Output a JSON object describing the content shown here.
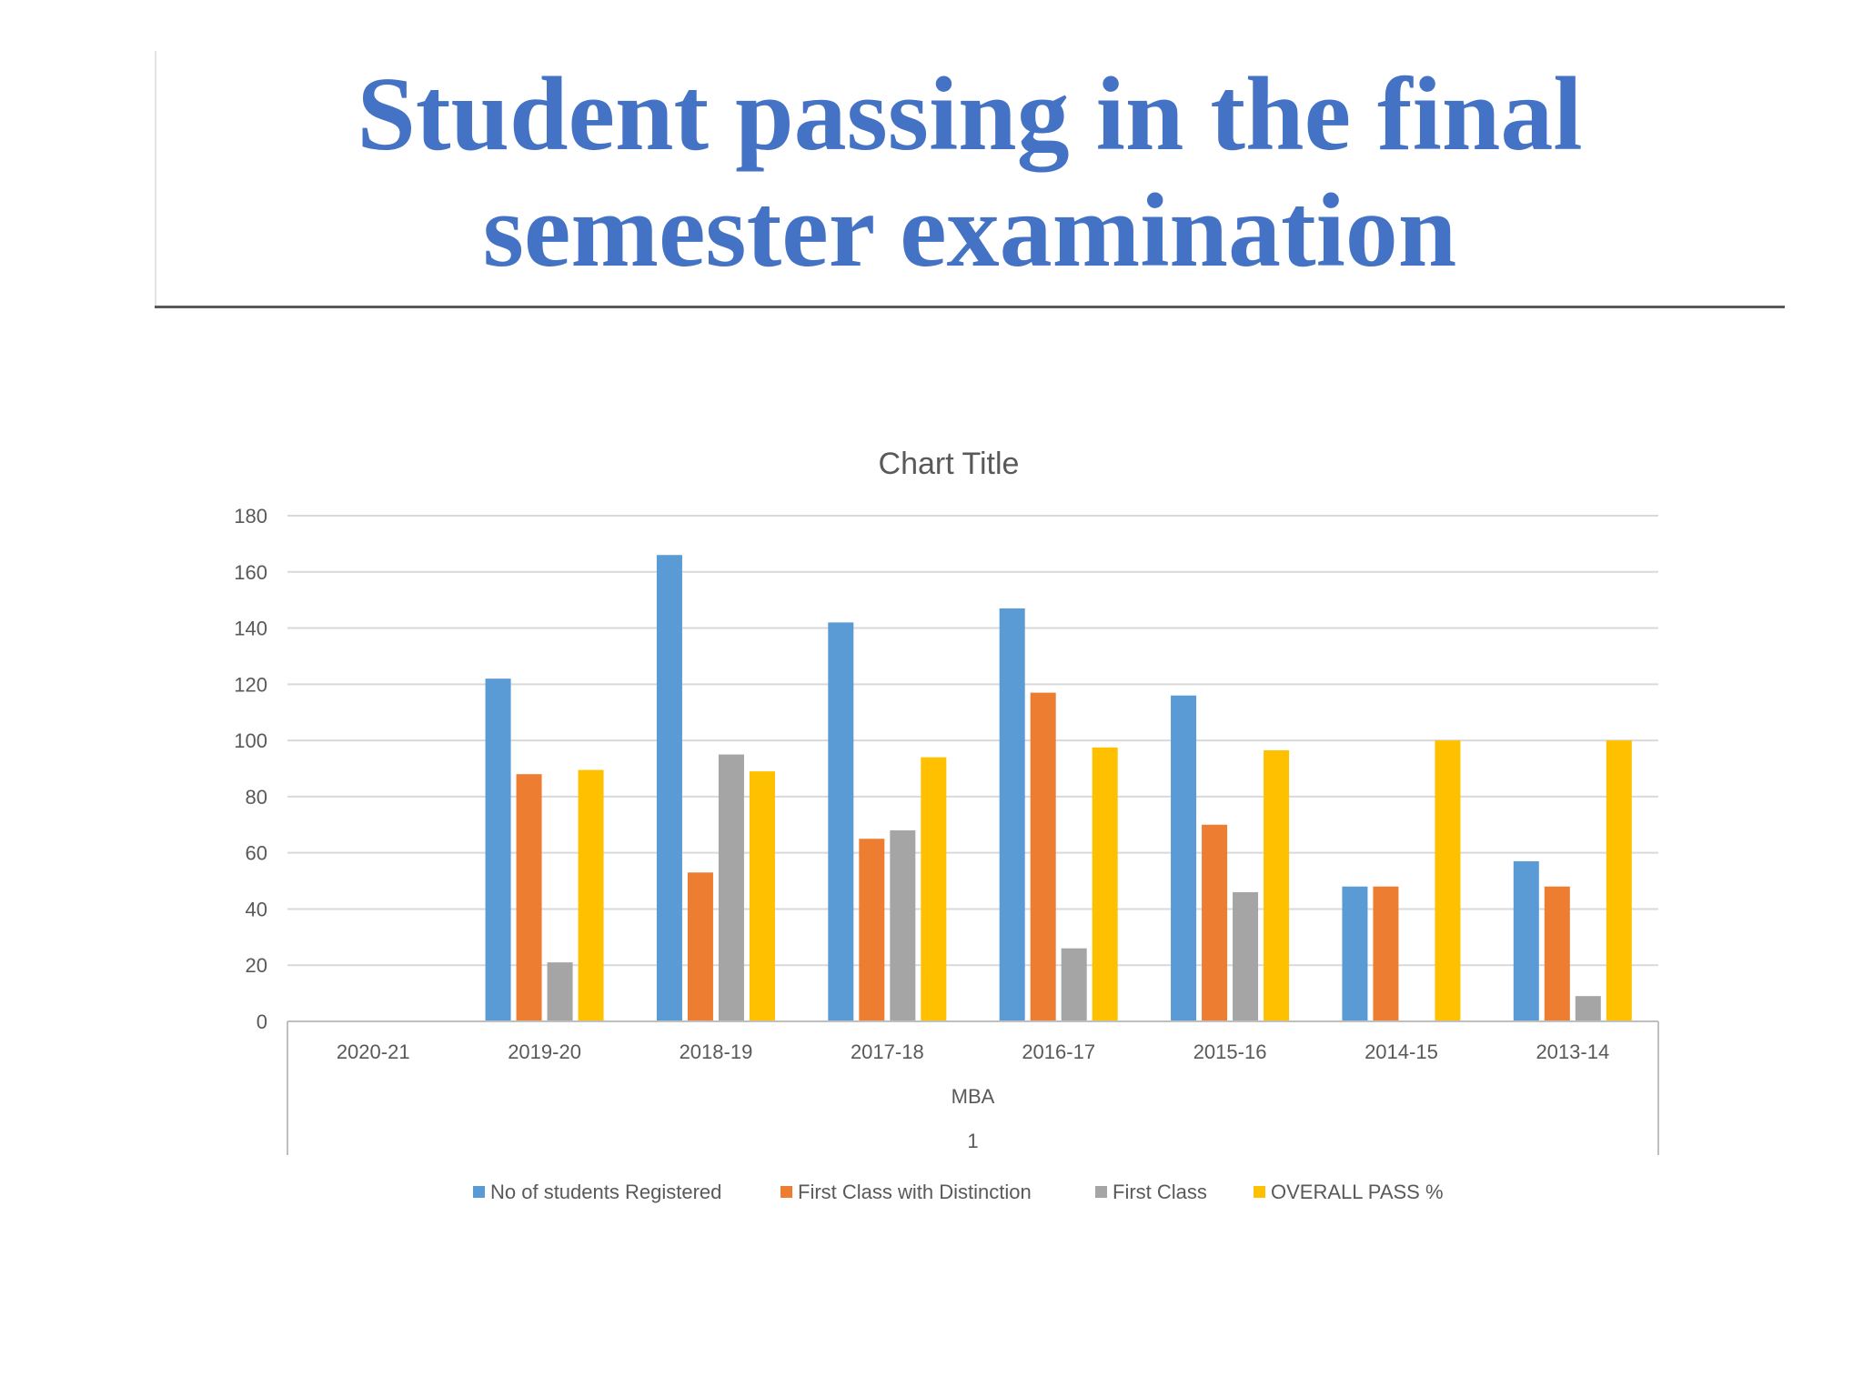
{
  "slide": {
    "title_line1": "Student passing in the final",
    "title_line2": "semester examination"
  },
  "chart_data": {
    "type": "bar",
    "title": "Chart Title",
    "categories": [
      "2020-21",
      "2019-20",
      "2018-19",
      "2017-18",
      "2016-17",
      "2015-16",
      "2014-15",
      "2013-14"
    ],
    "group_labels": [
      "MBA",
      "1"
    ],
    "ylim": [
      0,
      180
    ],
    "yticks": [
      0,
      20,
      40,
      60,
      80,
      100,
      120,
      140,
      160,
      180
    ],
    "grid": true,
    "legend_position": "bottom",
    "series": [
      {
        "name": "No of students Registered",
        "color": "#5b9bd5",
        "values": [
          0,
          122,
          166,
          142,
          147,
          116,
          48,
          57
        ]
      },
      {
        "name": "First Class with Distinction",
        "color": "#ed7d31",
        "values": [
          0,
          88,
          53,
          65,
          117,
          70,
          48,
          48
        ]
      },
      {
        "name": "First Class",
        "color": "#a5a5a5",
        "values": [
          0,
          21,
          95,
          68,
          26,
          46,
          0,
          9
        ]
      },
      {
        "name": "OVERALL  PASS %",
        "color": "#ffc000",
        "values": [
          0,
          89.5,
          89,
          94,
          97.5,
          96.5,
          100,
          100
        ]
      }
    ]
  }
}
